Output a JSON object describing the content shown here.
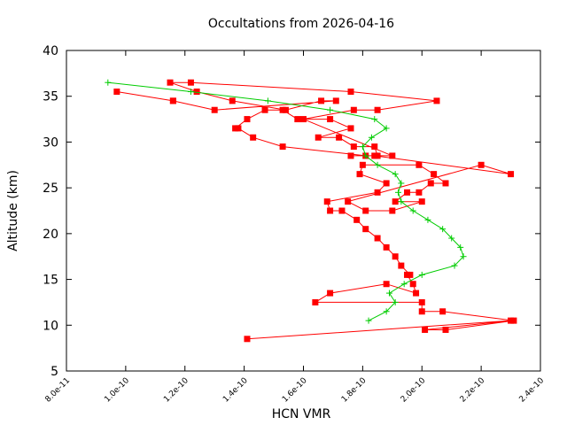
{
  "chart_data": {
    "type": "line",
    "title": "Occultations from 2026-04-16",
    "xlabel": "HCN VMR",
    "ylabel": "Altitude (km)",
    "xlim": [
      8e-11,
      2.4e-10
    ],
    "ylim": [
      5,
      40
    ],
    "xticks": [
      8e-11,
      1e-10,
      1.2e-10,
      1.4e-10,
      1.6e-10,
      1.8e-10,
      2e-10,
      2.2e-10,
      2.4e-10
    ],
    "xtick_labels": [
      "8.0e-11",
      "1.0e-10",
      "1.2e-10",
      "1.4e-10",
      "1.6e-10",
      "1.8e-10",
      "2.0e-10",
      "2.2e-10",
      "2.4e-10"
    ],
    "yticks": [
      5,
      10,
      15,
      20,
      25,
      30,
      35,
      40
    ],
    "ytick_labels": [
      "5",
      "10",
      "15",
      "20",
      "25",
      "30",
      "35",
      "40"
    ],
    "grid": false,
    "legend": "none",
    "series": [
      {
        "color": "#ff0000",
        "marker": "square",
        "points": [
          [
            1.41e-10,
            8.5
          ],
          [
            2.3e-10,
            10.5
          ],
          [
            2.01e-10,
            9.5
          ],
          [
            2.08e-10,
            9.5
          ],
          [
            2.31e-10,
            10.5
          ],
          [
            2.07e-10,
            11.5
          ],
          [
            2e-10,
            11.5
          ],
          [
            2e-10,
            12.5
          ],
          [
            1.64e-10,
            12.5
          ],
          [
            1.69e-10,
            13.5
          ],
          [
            1.88e-10,
            14.5
          ],
          [
            1.98e-10,
            13.5
          ],
          [
            1.97e-10,
            14.5
          ],
          [
            1.95e-10,
            15.5
          ],
          [
            1.96e-10,
            15.5
          ],
          [
            1.93e-10,
            16.5
          ],
          [
            1.91e-10,
            17.5
          ],
          [
            1.88e-10,
            18.5
          ],
          [
            1.85e-10,
            19.5
          ],
          [
            1.81e-10,
            20.5
          ],
          [
            1.78e-10,
            21.5
          ],
          [
            1.73e-10,
            22.5
          ],
          [
            1.69e-10,
            22.5
          ],
          [
            1.68e-10,
            23.5
          ],
          [
            1.85e-10,
            24.5
          ],
          [
            1.88e-10,
            25.5
          ],
          [
            1.79e-10,
            26.5
          ],
          [
            1.8e-10,
            27.5
          ],
          [
            1.99e-10,
            27.5
          ],
          [
            2.04e-10,
            26.5
          ],
          [
            2.08e-10,
            25.5
          ],
          [
            2.03e-10,
            25.5
          ],
          [
            1.99e-10,
            24.5
          ],
          [
            1.95e-10,
            24.5
          ],
          [
            1.91e-10,
            23.5
          ],
          [
            2e-10,
            23.5
          ],
          [
            1.9e-10,
            22.5
          ],
          [
            1.81e-10,
            22.5
          ],
          [
            1.75e-10,
            23.5
          ],
          [
            2.2e-10,
            27.5
          ],
          [
            2.3e-10,
            26.5
          ],
          [
            1.84e-10,
            28.5
          ],
          [
            1.85e-10,
            28.5
          ],
          [
            1.84e-10,
            29.5
          ],
          [
            1.77e-10,
            29.5
          ],
          [
            1.72e-10,
            30.5
          ],
          [
            1.65e-10,
            30.5
          ],
          [
            1.76e-10,
            31.5
          ],
          [
            1.69e-10,
            32.5
          ],
          [
            1.58e-10,
            32.5
          ],
          [
            1.53e-10,
            33.5
          ],
          [
            1.47e-10,
            33.5
          ],
          [
            1.41e-10,
            32.5
          ],
          [
            1.37e-10,
            31.5
          ],
          [
            1.38e-10,
            31.5
          ],
          [
            1.43e-10,
            30.5
          ],
          [
            1.53e-10,
            29.5
          ],
          [
            1.81e-10,
            28.5
          ],
          [
            1.76e-10,
            28.5
          ],
          [
            1.9e-10,
            28.5
          ],
          [
            1.6e-10,
            32.5
          ],
          [
            1.77e-10,
            33.5
          ],
          [
            1.85e-10,
            33.5
          ],
          [
            2.05e-10,
            34.5
          ],
          [
            1.76e-10,
            35.5
          ],
          [
            1.22e-10,
            36.5
          ],
          [
            1.15e-10,
            36.5
          ],
          [
            1.24e-10,
            35.5
          ],
          [
            1.36e-10,
            34.5
          ],
          [
            1.54e-10,
            33.5
          ],
          [
            1.66e-10,
            34.5
          ],
          [
            1.71e-10,
            34.5
          ],
          [
            1.3e-10,
            33.5
          ],
          [
            1.16e-10,
            34.5
          ],
          [
            9.7e-11,
            35.5
          ],
          [
            1.16e-10,
            34.5
          ]
        ]
      },
      {
        "color": "#00cc00",
        "marker": "plus",
        "points": [
          [
            1.82e-10,
            10.5
          ],
          [
            1.88e-10,
            11.5
          ],
          [
            1.91e-10,
            12.5
          ],
          [
            1.89e-10,
            13.5
          ],
          [
            1.94e-10,
            14.5
          ],
          [
            2e-10,
            15.5
          ],
          [
            2.11e-10,
            16.5
          ],
          [
            2.14e-10,
            17.5
          ],
          [
            2.13e-10,
            18.5
          ],
          [
            2.1e-10,
            19.5
          ],
          [
            2.07e-10,
            20.5
          ],
          [
            2.02e-10,
            21.5
          ],
          [
            1.97e-10,
            22.5
          ],
          [
            1.93e-10,
            23.5
          ],
          [
            1.92e-10,
            24.5
          ],
          [
            1.93e-10,
            25.5
          ],
          [
            1.91e-10,
            26.5
          ],
          [
            1.85e-10,
            27.5
          ],
          [
            1.81e-10,
            28.5
          ],
          [
            1.8e-10,
            29.5
          ],
          [
            1.83e-10,
            30.5
          ],
          [
            1.88e-10,
            31.5
          ],
          [
            1.84e-10,
            32.5
          ],
          [
            1.69e-10,
            33.5
          ],
          [
            1.48e-10,
            34.5
          ],
          [
            1.22e-10,
            35.5
          ],
          [
            9.4e-11,
            36.5
          ]
        ]
      }
    ]
  }
}
